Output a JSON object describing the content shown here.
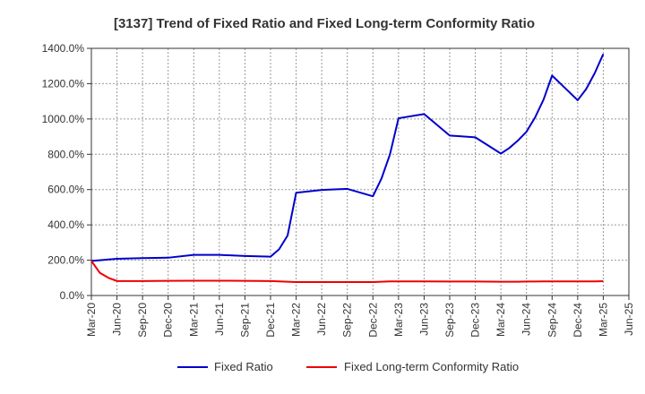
{
  "chart_data": {
    "type": "line",
    "title": "[3137]  Trend of Fixed Ratio and Fixed Long-term Conformity Ratio",
    "xlabel": "",
    "ylabel": "",
    "ylim": [
      0,
      1400
    ],
    "y_ticks": [
      "0.0%",
      "200.0%",
      "400.0%",
      "600.0%",
      "800.0%",
      "1000.0%",
      "1200.0%",
      "1400.0%"
    ],
    "x_ticks": [
      "Mar-20",
      "Jun-20",
      "Sep-20",
      "Dec-20",
      "Mar-21",
      "Jun-21",
      "Sep-21",
      "Dec-21",
      "Mar-22",
      "Jun-22",
      "Sep-22",
      "Dec-22",
      "Mar-23",
      "Jun-23",
      "Sep-23",
      "Dec-23",
      "Mar-24",
      "Jun-24",
      "Sep-24",
      "Dec-24",
      "Mar-25",
      "Jun-25"
    ],
    "x": [
      "2020-03",
      "2020-04",
      "2020-05",
      "2020-06",
      "2020-09",
      "2020-12",
      "2021-03",
      "2021-06",
      "2021-09",
      "2021-12",
      "2022-01",
      "2022-02",
      "2022-03",
      "2022-06",
      "2022-09",
      "2022-12",
      "2023-01",
      "2023-02",
      "2023-03",
      "2023-06",
      "2023-09",
      "2023-12",
      "2024-03",
      "2024-04",
      "2024-05",
      "2024-06",
      "2024-07",
      "2024-08",
      "2024-09",
      "2024-12",
      "2025-01",
      "2025-02",
      "2025-03"
    ],
    "series": [
      {
        "name": "Fixed Ratio",
        "color": "#0000cc",
        "values": [
          196,
          200,
          204,
          208,
          212,
          214,
          230,
          230,
          224,
          220,
          262,
          340,
          582,
          598,
          604,
          562,
          662,
          800,
          1004,
          1028,
          906,
          896,
          804,
          836,
          878,
          928,
          1008,
          1110,
          1246,
          1106,
          1170,
          1260,
          1368
        ]
      },
      {
        "name": "Fixed Long-term Conformity Ratio",
        "color": "#ee0000",
        "values": [
          196,
          128,
          100,
          82,
          82,
          83,
          84,
          84,
          83,
          82,
          80,
          78,
          76,
          76,
          76,
          76,
          78,
          80,
          80,
          80,
          79,
          79,
          78,
          78,
          78,
          79,
          79,
          80,
          80,
          80,
          80,
          80,
          81
        ]
      }
    ],
    "grid": true,
    "legend_position": "bottom"
  }
}
